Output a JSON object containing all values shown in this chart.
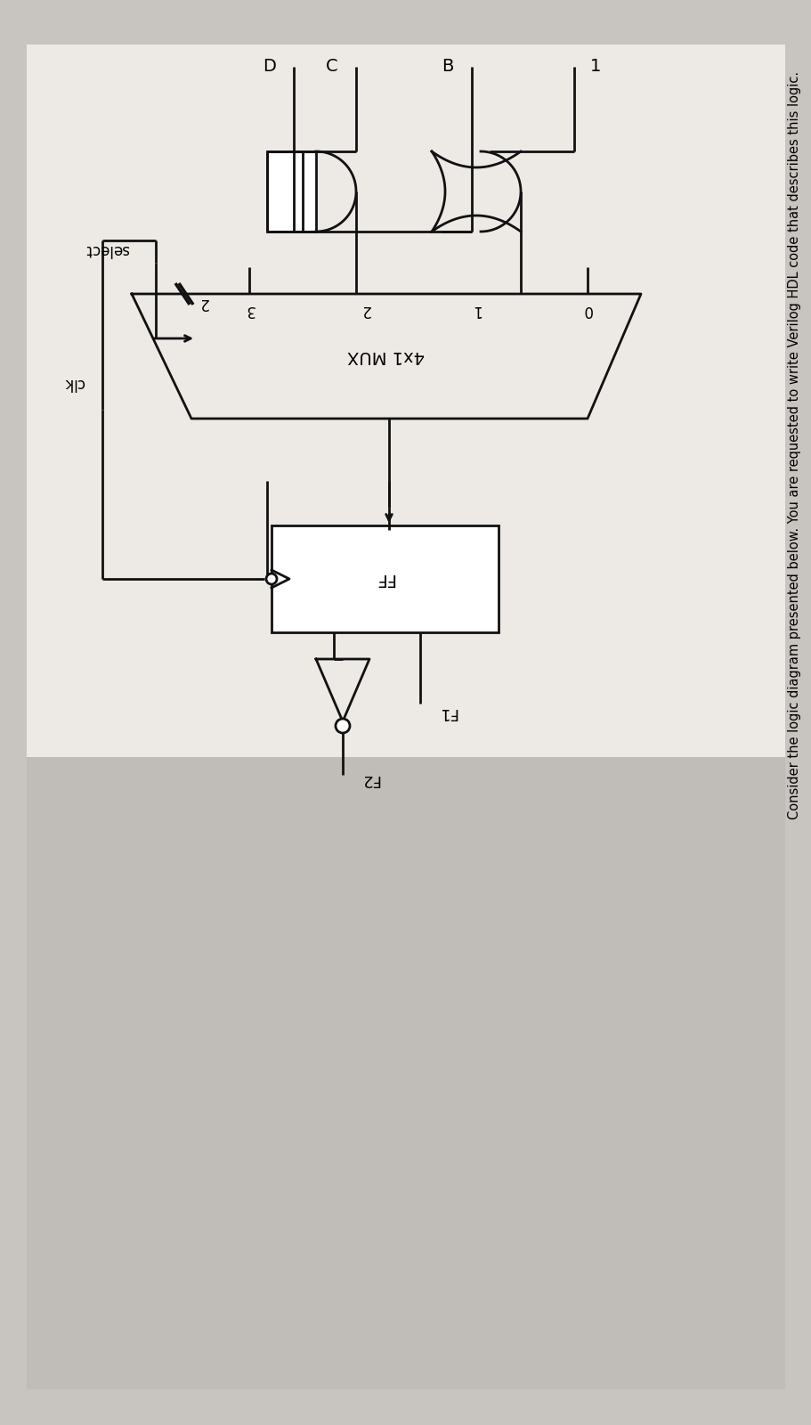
{
  "fig_width": 9.12,
  "fig_height": 16.0,
  "bg_outer": "#c8c4c0",
  "bg_panel": "#ede9e5",
  "bg_lower": "#c0bcb8",
  "line_color": "#111111",
  "lw": 2.0,
  "title": "Consider the logic diagram presented below. You are requested to write Verilog HDL code that describes this logic.",
  "mux_label": "4x1 MUX",
  "ff_label": "FF",
  "select_label": "select",
  "clk_label": "clk",
  "bus_label": "2",
  "f1_label": "F1",
  "f2_label": "F2",
  "input_labels": [
    "1",
    "B",
    "C",
    "D"
  ],
  "mux_port_labels": [
    "0",
    "1",
    "2",
    "3"
  ]
}
